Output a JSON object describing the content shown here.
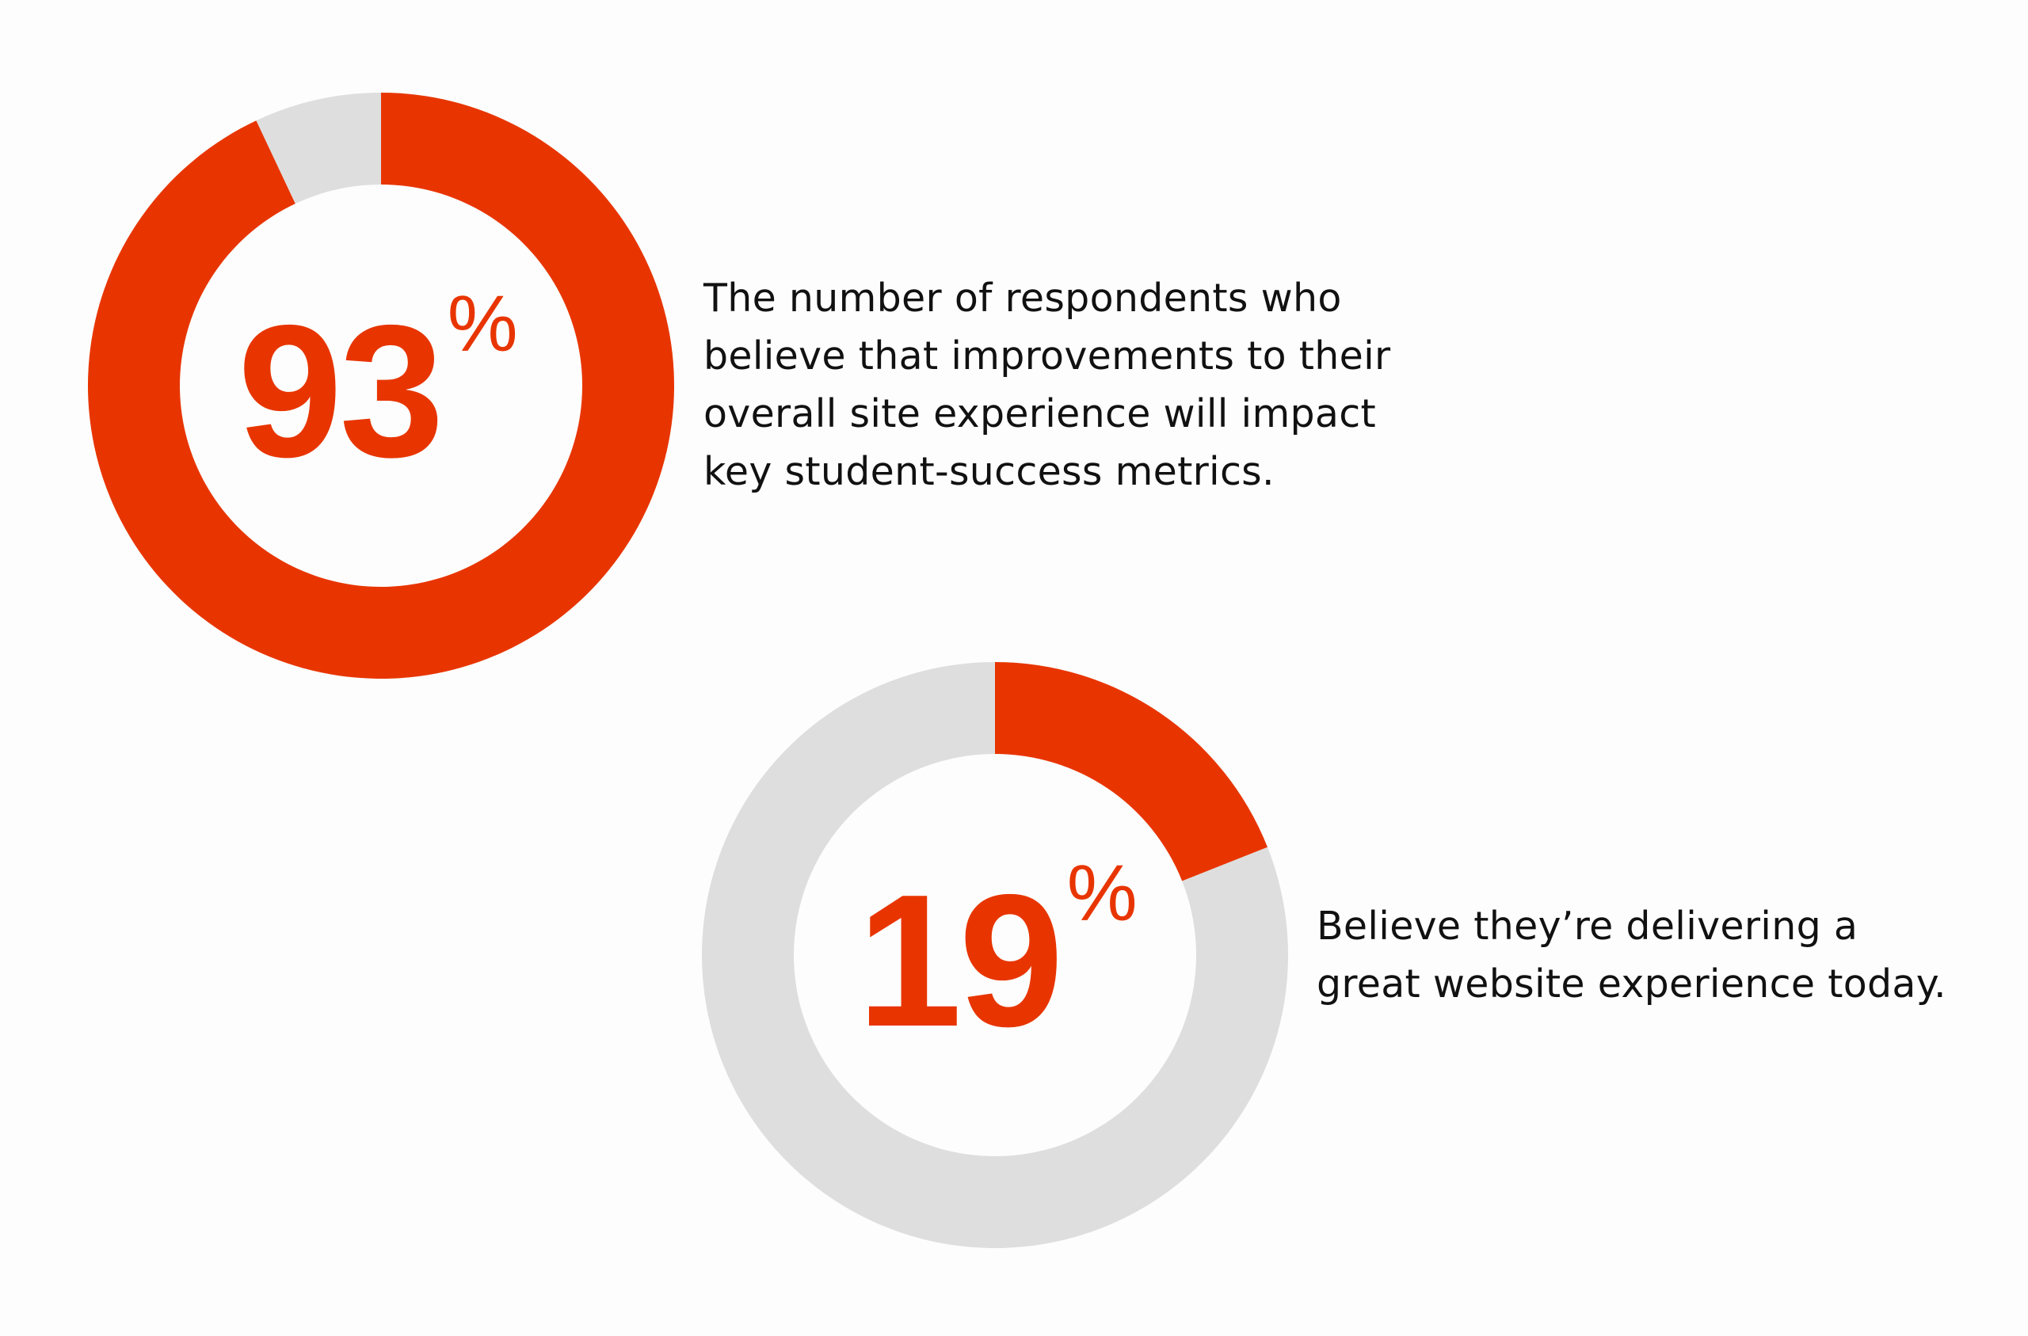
{
  "colors": {
    "accent": "#e83500",
    "remainder": "#dedede",
    "text": "#111111",
    "background": "#fdfdfd"
  },
  "chart_data": [
    {
      "type": "pie",
      "variant": "donut",
      "values": [
        93,
        7
      ],
      "highlighted_value": 93,
      "label": {
        "number": "93",
        "unit": "%"
      },
      "caption": "The number of respondents who believe that improvements to their overall site experience will impact key student-success metrics.",
      "caption_lines": [
        "The number of respondents who",
        "believe that improvements to their",
        "overall site experience will impact",
        "key student-success metrics."
      ]
    },
    {
      "type": "pie",
      "variant": "donut",
      "values": [
        19,
        81
      ],
      "highlighted_value": 19,
      "label": {
        "number": "19",
        "unit": "%"
      },
      "caption": "Believe they’re delivering a great website experience today.",
      "caption_lines": [
        "Believe they’re delivering a",
        "great website experience today."
      ]
    }
  ]
}
